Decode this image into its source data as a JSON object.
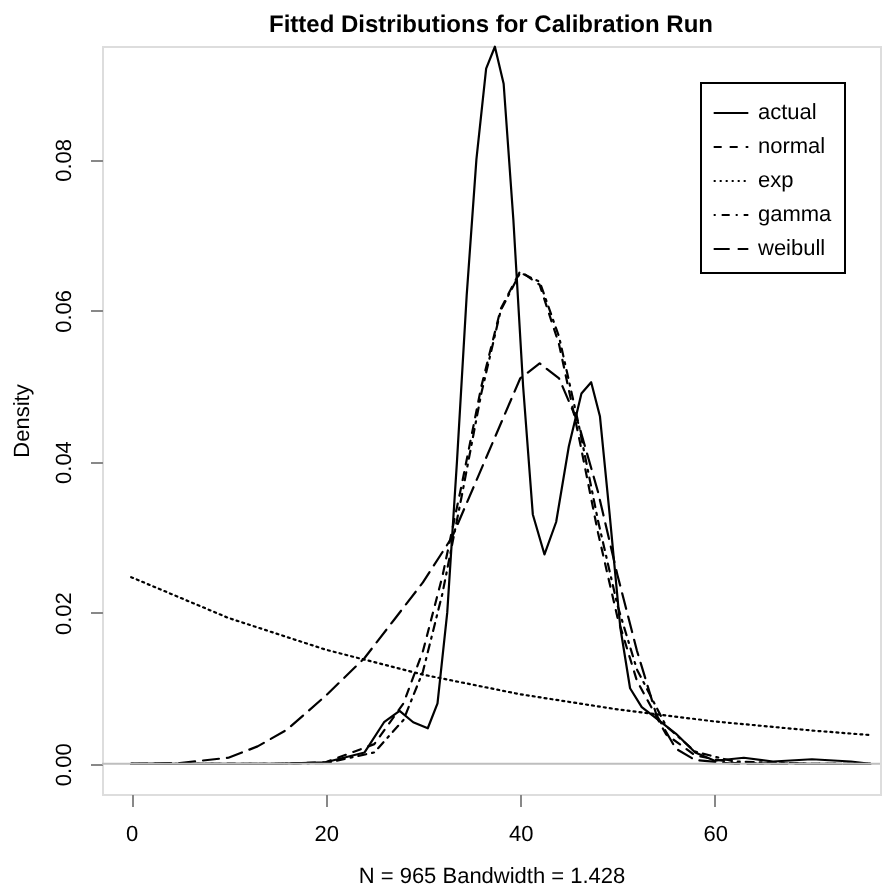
{
  "chart_data": {
    "type": "line",
    "title": "Fitted Distributions for Calibration Run",
    "xlabel": "N = 965   Bandwidth = 1.428",
    "ylabel": "Density",
    "xlim": [
      -3,
      77
    ],
    "ylim": [
      -0.004,
      0.095
    ],
    "xticks": [
      0,
      20,
      40,
      60
    ],
    "yticks": [
      {
        "value": 0,
        "label": "0.00"
      },
      {
        "value": 0.02,
        "label": "0.02"
      },
      {
        "value": 0.04,
        "label": "0.04"
      },
      {
        "value": 0.06,
        "label": "0.06"
      },
      {
        "value": 0.08,
        "label": "0.08"
      }
    ],
    "grid": false,
    "legend": "top right",
    "marker": "none",
    "ref_lines": [
      {
        "axis": "y",
        "value": 0,
        "color": "#bebebe",
        "line_style": "solid"
      }
    ],
    "series": [
      {
        "name": "actual",
        "color": "#000000",
        "line_style": "solid",
        "x": [
          0,
          15,
          20,
          24,
          26,
          27.6,
          29,
          30.5,
          31.5,
          32.5,
          33.5,
          34.5,
          35.5,
          36.5,
          37.4,
          38.3,
          39.3,
          40.3,
          41.3,
          42.5,
          43.7,
          45,
          46.3,
          47.3,
          48.2,
          49.2,
          50.3,
          51.3,
          52.5,
          54,
          56,
          58,
          60,
          63,
          66,
          70,
          74,
          76
        ],
        "values": [
          0,
          0,
          0.0002,
          0.0015,
          0.0055,
          0.007,
          0.0055,
          0.0047,
          0.008,
          0.02,
          0.04,
          0.062,
          0.08,
          0.092,
          0.0949,
          0.09,
          0.072,
          0.05,
          0.033,
          0.0277,
          0.032,
          0.042,
          0.049,
          0.0505,
          0.046,
          0.033,
          0.018,
          0.01,
          0.0075,
          0.006,
          0.004,
          0.0015,
          0.0004,
          0.0008,
          0.0003,
          0.0006,
          0.0003,
          0
        ]
      },
      {
        "name": "normal",
        "color": "#000000",
        "line_style": "dashed",
        "x": [
          0,
          10,
          15,
          20,
          25,
          28,
          30,
          32,
          34,
          36,
          38,
          40,
          42,
          44,
          46,
          48,
          50,
          52,
          55,
          58,
          62,
          70,
          76
        ],
        "values": [
          0,
          0,
          0,
          0.0002,
          0.0026,
          0.008,
          0.0149,
          0.0248,
          0.037,
          0.0499,
          0.0602,
          0.0652,
          0.0634,
          0.0555,
          0.0435,
          0.0306,
          0.0194,
          0.011,
          0.0039,
          0.0011,
          0.0001,
          0,
          0
        ]
      },
      {
        "name": "exp",
        "color": "#000000",
        "line_style": "dotted",
        "x": [
          0,
          10,
          20,
          30,
          40,
          50,
          60,
          70,
          76
        ],
        "values": [
          0.0247,
          0.0193,
          0.0151,
          0.0118,
          0.0092,
          0.0072,
          0.0056,
          0.0044,
          0.0038
        ]
      },
      {
        "name": "gamma",
        "color": "#000000",
        "line_style": "dashdot",
        "x": [
          0,
          10,
          15,
          20,
          25,
          28,
          30,
          32,
          34,
          36,
          38,
          40,
          42,
          44,
          46,
          48,
          50,
          52,
          55,
          58,
          62,
          70,
          76
        ],
        "values": [
          0,
          0,
          0,
          0.0001,
          0.0015,
          0.0058,
          0.0122,
          0.0225,
          0.0355,
          0.049,
          0.06,
          0.065,
          0.0638,
          0.0565,
          0.045,
          0.0322,
          0.021,
          0.0125,
          0.005,
          0.0016,
          0.0003,
          0,
          0
        ]
      },
      {
        "name": "weibull",
        "color": "#000000",
        "line_style": "longdash",
        "x": [
          0,
          5,
          10,
          13,
          16,
          20,
          24,
          27,
          30,
          33,
          36,
          40,
          42,
          44,
          46,
          48,
          50,
          52,
          54,
          56,
          58,
          62,
          76
        ],
        "values": [
          0,
          0.0001,
          0.0008,
          0.0023,
          0.0045,
          0.009,
          0.014,
          0.019,
          0.024,
          0.03,
          0.039,
          0.051,
          0.053,
          0.051,
          0.045,
          0.036,
          0.025,
          0.015,
          0.0065,
          0.002,
          0.0005,
          0,
          0
        ]
      }
    ]
  }
}
